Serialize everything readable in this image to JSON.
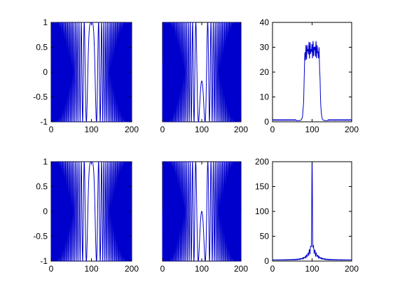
{
  "chart_data": [
    {
      "type": "line",
      "signal": "chirp-cos",
      "xlim": [
        0,
        200
      ],
      "ylim": [
        -1,
        1
      ],
      "xticks": [
        0,
        100,
        200
      ],
      "xtick_labels": [
        "0",
        "100",
        "200"
      ],
      "yticks": [
        -1,
        -0.5,
        0,
        0.5,
        1
      ],
      "ytick_labels": [
        "-1",
        "-0.5",
        "0",
        "0.5",
        "1"
      ],
      "grid": false,
      "series": [
        {
          "color": "#0000cc",
          "params": {
            "center": 100,
            "rate": 0.0063,
            "phase": 0
          }
        }
      ]
    },
    {
      "type": "line",
      "signal": "chirp-cos-phase",
      "xlim": [
        0,
        200
      ],
      "ylim": [
        -1,
        1
      ],
      "xticks": [
        0,
        100,
        200
      ],
      "xtick_labels": [
        "0",
        "100",
        "200"
      ],
      "yticks": [],
      "ytick_labels": [],
      "grid": false,
      "series": [
        {
          "color": "#0000cc",
          "params": {
            "center": 100,
            "rate": 0.0063,
            "phase": 1.75
          }
        }
      ]
    },
    {
      "type": "line",
      "signal": "plateau-spectrum",
      "xlim": [
        0,
        200
      ],
      "ylim": [
        0,
        40
      ],
      "xticks": [
        0,
        100,
        200
      ],
      "xtick_labels": [
        "0",
        "100",
        "200"
      ],
      "yticks": [
        0,
        10,
        20,
        30,
        40
      ],
      "ytick_labels": [
        "0",
        "10",
        "20",
        "30",
        "40"
      ],
      "grid": false,
      "series": [
        {
          "color": "#0000cc",
          "params": {
            "low": 80,
            "high": 120,
            "level": 29,
            "ripple": 3.5,
            "floor": 0.5,
            "peak_left": 34,
            "peak_right": 34
          }
        }
      ]
    },
    {
      "type": "line",
      "signal": "chirp-cos",
      "xlim": [
        0,
        200
      ],
      "ylim": [
        -1,
        1
      ],
      "xticks": [
        0,
        100,
        200
      ],
      "xtick_labels": [
        "0",
        "100",
        "200"
      ],
      "yticks": [
        -1,
        -0.5,
        0,
        0.5,
        1
      ],
      "ytick_labels": [
        "-1",
        "-0.5",
        "0",
        "0.5",
        "1"
      ],
      "grid": false,
      "series": [
        {
          "color": "#0000cc",
          "params": {
            "center": 100,
            "rate": 0.0063,
            "phase": 0
          }
        }
      ]
    },
    {
      "type": "line",
      "signal": "chirp-cos-phase",
      "xlim": [
        0,
        200
      ],
      "ylim": [
        -1,
        1
      ],
      "xticks": [
        0,
        100,
        200
      ],
      "xtick_labels": [
        "0",
        "100",
        "200"
      ],
      "yticks": [],
      "ytick_labels": [],
      "grid": false,
      "series": [
        {
          "color": "#0000cc",
          "params": {
            "center": 100,
            "rate": 0.0063,
            "phase": 1.57
          }
        }
      ]
    },
    {
      "type": "line",
      "signal": "peak-spectrum",
      "xlim": [
        0,
        200
      ],
      "ylim": [
        0,
        200
      ],
      "xticks": [
        0,
        100,
        200
      ],
      "xtick_labels": [
        "0",
        "100",
        "200"
      ],
      "yticks": [
        0,
        50,
        100,
        150,
        200
      ],
      "ytick_labels": [
        "0",
        "50",
        "100",
        "150",
        "200"
      ],
      "grid": false,
      "series": [
        {
          "color": "#0000cc",
          "params": {
            "center": 100,
            "peak": 200,
            "side": 40,
            "floor": 2
          }
        }
      ]
    }
  ]
}
